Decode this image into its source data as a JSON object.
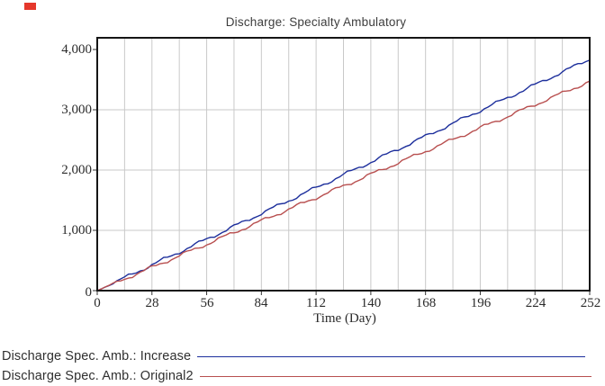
{
  "window": {
    "background": "#ffffff"
  },
  "marker": {
    "name": "red-marker",
    "color": "#e5372b"
  },
  "chart_data": {
    "type": "line",
    "title": "Discharge: Specialty Ambulatory",
    "xlabel": "Time (Day)",
    "ylabel": "",
    "xlim": [
      0,
      252
    ],
    "ylim": [
      0,
      4000
    ],
    "grid": true,
    "minor_x_grid_step": 14,
    "x_ticks": [
      "0",
      "28",
      "56",
      "84",
      "112",
      "140",
      "168",
      "196",
      "224",
      "252"
    ],
    "y_ticks": [
      "4,000",
      "3,000",
      "2,000",
      "1,000",
      "0"
    ],
    "x": [
      0,
      28,
      56,
      84,
      112,
      140,
      168,
      196,
      224,
      252
    ],
    "series": [
      {
        "name": "Discharge Spec. Amb.: Increase",
        "color": "#1d2f9c",
        "values": [
          0,
          427,
          853,
          1280,
          1707,
          2133,
          2560,
          2987,
          3413,
          3840
        ]
      },
      {
        "name": "Discharge Spec. Amb.: Original2",
        "color": "#b84f4f",
        "values": [
          0,
          386,
          771,
          1157,
          1542,
          1928,
          2313,
          2699,
          3084,
          3470
        ]
      }
    ],
    "legend_position": "bottom-left",
    "frame_color": "#151515",
    "grid_color": "#c9c9c9",
    "tick_color": "#333333"
  }
}
